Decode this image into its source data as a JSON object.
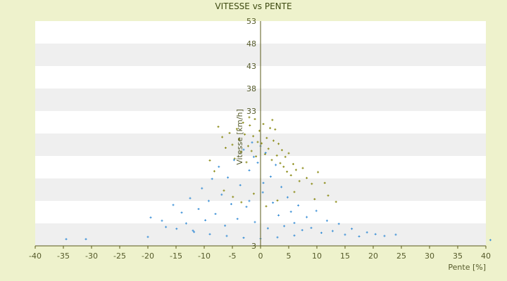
{
  "chart_data": {
    "type": "scatter",
    "title": "VITESSE vs PENTE",
    "xlabel": "Pente [%]",
    "ylabel": "Vitesse [km/h]",
    "xlim": [
      -40,
      40
    ],
    "ylim": [
      3,
      53
    ],
    "x_ticks": [
      -40,
      -35,
      -30,
      -25,
      -20,
      -15,
      -10,
      -5,
      0,
      5,
      10,
      15,
      20,
      25,
      30,
      35,
      40
    ],
    "y_ticks": [
      3,
      8,
      13,
      18,
      23,
      28,
      33,
      38,
      43,
      48,
      53
    ],
    "y_tick_labels": [
      "3",
      "",
      "",
      "",
      "",
      "",
      "33",
      "38",
      "43",
      "48",
      "53"
    ],
    "grid": "horizontal bands",
    "colors": {
      "background": "#eef2cc",
      "plot_band_light": "#ffffff",
      "plot_band_dark": "#efefef",
      "axis": "#5a5a1a",
      "series_blue": "#3a8fd6",
      "series_olive": "#8a8a14"
    },
    "series": [
      {
        "color": "#8a8a14",
        "marker": "cross",
        "points": [
          [
            -7.5,
            29.5
          ],
          [
            -6.8,
            27.2
          ],
          [
            -6.2,
            24.8
          ],
          [
            -5.5,
            28.1
          ],
          [
            -5.0,
            25.5
          ],
          [
            -4.6,
            22.4
          ],
          [
            -4.2,
            29.0
          ],
          [
            -3.8,
            26.7
          ],
          [
            -3.5,
            23.9
          ],
          [
            -3.1,
            30.4
          ],
          [
            -2.8,
            27.8
          ],
          [
            -2.5,
            21.6
          ],
          [
            -2.2,
            25.2
          ],
          [
            -1.9,
            29.8
          ],
          [
            -1.6,
            24.1
          ],
          [
            -1.3,
            27.4
          ],
          [
            -1.0,
            31.2
          ],
          [
            -0.8,
            22.9
          ],
          [
            -0.5,
            26.1
          ],
          [
            -0.2,
            28.6
          ],
          [
            0.2,
            25.8
          ],
          [
            0.5,
            30.1
          ],
          [
            0.8,
            23.4
          ],
          [
            1.1,
            27.0
          ],
          [
            1.4,
            24.6
          ],
          [
            1.7,
            29.2
          ],
          [
            2.0,
            22.1
          ],
          [
            2.3,
            26.4
          ],
          [
            2.6,
            28.9
          ],
          [
            2.9,
            23.1
          ],
          [
            3.2,
            25.7
          ],
          [
            3.5,
            21.4
          ],
          [
            3.8,
            24.3
          ],
          [
            4.1,
            20.6
          ],
          [
            4.4,
            22.8
          ],
          [
            4.7,
            19.5
          ],
          [
            5.0,
            23.6
          ],
          [
            5.4,
            18.7
          ],
          [
            5.8,
            21.2
          ],
          [
            6.3,
            19.9
          ],
          [
            6.9,
            17.4
          ],
          [
            7.5,
            20.3
          ],
          [
            8.2,
            18.1
          ],
          [
            9.1,
            16.8
          ],
          [
            10.2,
            19.4
          ],
          [
            11.4,
            17.0
          ],
          [
            13.4,
            12.8
          ],
          [
            -9.0,
            22.0
          ],
          [
            -8.2,
            19.6
          ],
          [
            -6.5,
            15.3
          ],
          [
            -4.9,
            13.9
          ],
          [
            -3.4,
            12.7
          ],
          [
            -1.2,
            14.6
          ],
          [
            1.0,
            11.8
          ],
          [
            3.0,
            13.1
          ],
          [
            6.0,
            15.0
          ],
          [
            9.6,
            13.4
          ],
          [
            12.0,
            14.2
          ],
          [
            -2.0,
            31.6
          ],
          [
            2.1,
            31.0
          ]
        ]
      },
      {
        "color": "#3a8fd6",
        "marker": "cross",
        "points": [
          [
            -34.5,
            4.5
          ],
          [
            -31.0,
            4.5
          ],
          [
            -20.0,
            5.0
          ],
          [
            -19.5,
            9.3
          ],
          [
            -17.5,
            8.6
          ],
          [
            -16.8,
            7.2
          ],
          [
            -15.5,
            12.1
          ],
          [
            -14.9,
            6.8
          ],
          [
            -14.0,
            10.4
          ],
          [
            -13.2,
            8.0
          ],
          [
            -12.5,
            13.6
          ],
          [
            -11.8,
            6.1
          ],
          [
            -11.0,
            11.2
          ],
          [
            -10.4,
            15.8
          ],
          [
            -9.8,
            8.7
          ],
          [
            -9.2,
            13.0
          ],
          [
            -8.6,
            17.9
          ],
          [
            -8.0,
            10.1
          ],
          [
            -7.4,
            20.6
          ],
          [
            -6.9,
            14.4
          ],
          [
            -6.3,
            7.5
          ],
          [
            -5.8,
            18.2
          ],
          [
            -5.2,
            12.3
          ],
          [
            -4.7,
            22.1
          ],
          [
            -4.1,
            9.0
          ],
          [
            -3.6,
            16.5
          ],
          [
            -3.0,
            24.4
          ],
          [
            -2.5,
            11.7
          ],
          [
            -2.0,
            19.8
          ],
          [
            -1.5,
            26.0
          ],
          [
            -1.0,
            8.3
          ],
          [
            -0.5,
            21.5
          ],
          [
            0.0,
            25.2
          ],
          [
            0.4,
            14.9
          ],
          [
            0.9,
            23.7
          ],
          [
            1.3,
            6.9
          ],
          [
            1.8,
            18.4
          ],
          [
            2.2,
            12.6
          ],
          [
            2.7,
            21.0
          ],
          [
            3.2,
            9.8
          ],
          [
            3.7,
            16.1
          ],
          [
            4.2,
            7.4
          ],
          [
            4.8,
            13.8
          ],
          [
            5.4,
            10.6
          ],
          [
            6.0,
            8.1
          ],
          [
            6.7,
            12.0
          ],
          [
            7.4,
            6.5
          ],
          [
            8.2,
            9.4
          ],
          [
            9.0,
            7.0
          ],
          [
            9.9,
            10.8
          ],
          [
            10.8,
            5.9
          ],
          [
            11.8,
            8.6
          ],
          [
            12.8,
            6.3
          ],
          [
            13.9,
            7.9
          ],
          [
            15.0,
            5.5
          ],
          [
            16.2,
            6.8
          ],
          [
            17.5,
            5.1
          ],
          [
            18.9,
            6.0
          ],
          [
            20.4,
            5.6
          ],
          [
            22.0,
            5.2
          ],
          [
            24.0,
            5.5
          ],
          [
            40.8,
            4.3
          ],
          [
            -6.0,
            5.2
          ],
          [
            -3.0,
            4.8
          ],
          [
            0.0,
            4.6
          ],
          [
            3.0,
            4.9
          ],
          [
            6.0,
            5.3
          ],
          [
            -9.0,
            5.6
          ],
          [
            -12.0,
            6.4
          ],
          [
            -2.0,
            13.0
          ],
          [
            0.5,
            17.0
          ],
          [
            -1.2,
            22.8
          ]
        ]
      }
    ]
  }
}
